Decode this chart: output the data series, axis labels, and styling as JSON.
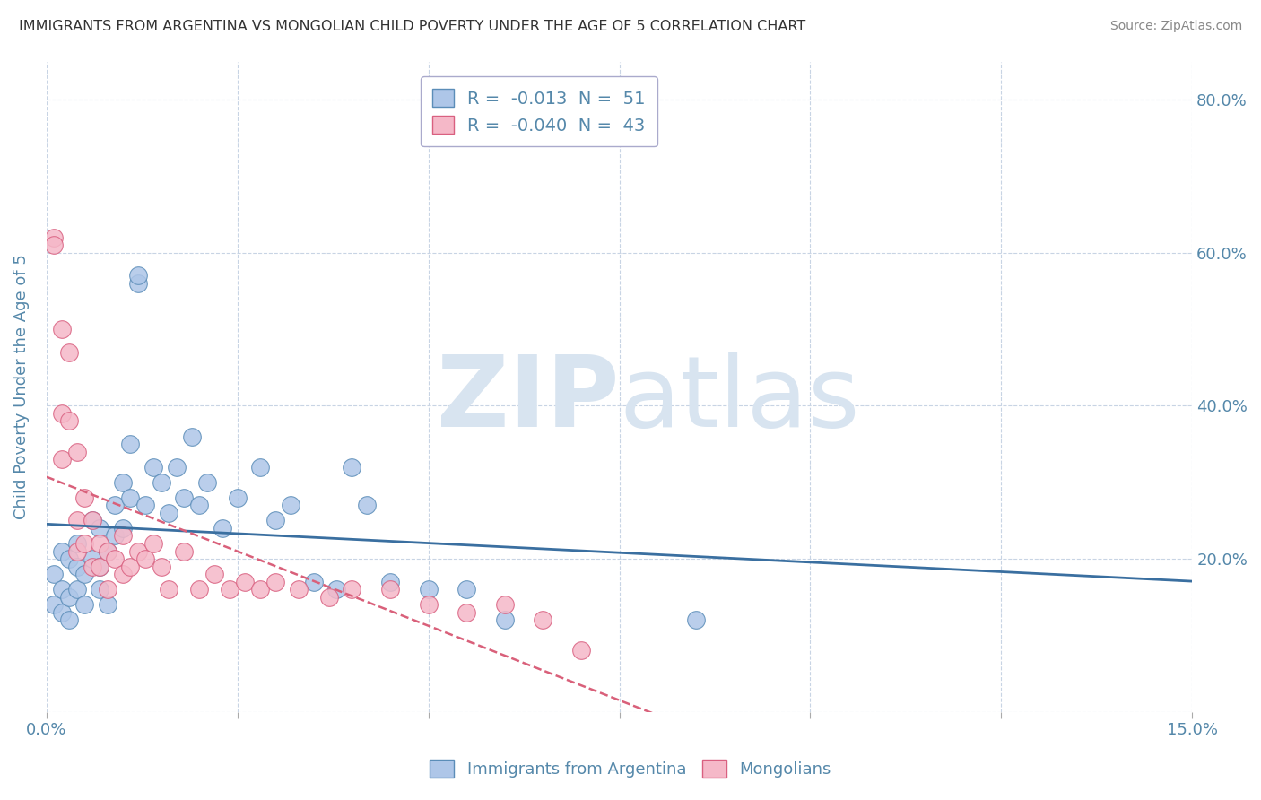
{
  "title": "IMMIGRANTS FROM ARGENTINA VS MONGOLIAN CHILD POVERTY UNDER THE AGE OF 5 CORRELATION CHART",
  "source": "Source: ZipAtlas.com",
  "ylabel": "Child Poverty Under the Age of 5",
  "xlim": [
    0.0,
    0.15
  ],
  "ylim": [
    0.0,
    0.85
  ],
  "right_yticks": [
    0.2,
    0.4,
    0.6,
    0.8
  ],
  "right_yticklabels": [
    "20.0%",
    "40.0%",
    "60.0%",
    "80.0%"
  ],
  "blue_R": "-0.013",
  "blue_N": "51",
  "pink_R": "-0.040",
  "pink_N": "43",
  "blue_color": "#aec6e8",
  "pink_color": "#f5b8c8",
  "blue_edge_color": "#5b8db8",
  "pink_edge_color": "#d96080",
  "blue_line_color": "#3a6fa0",
  "pink_line_color": "#d9607a",
  "watermark_color": "#d8e4f0",
  "legend_label_blue": "Immigrants from Argentina",
  "legend_label_pink": "Mongolians",
  "blue_scatter_x": [
    0.001,
    0.001,
    0.002,
    0.002,
    0.002,
    0.003,
    0.003,
    0.003,
    0.004,
    0.004,
    0.004,
    0.005,
    0.005,
    0.006,
    0.006,
    0.007,
    0.007,
    0.007,
    0.008,
    0.008,
    0.009,
    0.009,
    0.01,
    0.01,
    0.011,
    0.011,
    0.012,
    0.012,
    0.013,
    0.014,
    0.015,
    0.016,
    0.017,
    0.018,
    0.019,
    0.02,
    0.021,
    0.023,
    0.025,
    0.028,
    0.03,
    0.032,
    0.035,
    0.038,
    0.04,
    0.042,
    0.045,
    0.05,
    0.055,
    0.06,
    0.085
  ],
  "blue_scatter_y": [
    0.18,
    0.14,
    0.16,
    0.21,
    0.13,
    0.15,
    0.2,
    0.12,
    0.19,
    0.16,
    0.22,
    0.18,
    0.14,
    0.2,
    0.25,
    0.24,
    0.19,
    0.16,
    0.21,
    0.14,
    0.27,
    0.23,
    0.3,
    0.24,
    0.35,
    0.28,
    0.56,
    0.57,
    0.27,
    0.32,
    0.3,
    0.26,
    0.32,
    0.28,
    0.36,
    0.27,
    0.3,
    0.24,
    0.28,
    0.32,
    0.25,
    0.27,
    0.17,
    0.16,
    0.32,
    0.27,
    0.17,
    0.16,
    0.16,
    0.12,
    0.12
  ],
  "pink_scatter_x": [
    0.001,
    0.001,
    0.002,
    0.002,
    0.002,
    0.003,
    0.003,
    0.004,
    0.004,
    0.004,
    0.005,
    0.005,
    0.006,
    0.006,
    0.007,
    0.007,
    0.008,
    0.008,
    0.009,
    0.01,
    0.01,
    0.011,
    0.012,
    0.013,
    0.014,
    0.015,
    0.016,
    0.018,
    0.02,
    0.022,
    0.024,
    0.026,
    0.028,
    0.03,
    0.033,
    0.037,
    0.04,
    0.045,
    0.05,
    0.055,
    0.06,
    0.065,
    0.07
  ],
  "pink_scatter_y": [
    0.62,
    0.61,
    0.5,
    0.39,
    0.33,
    0.38,
    0.47,
    0.34,
    0.25,
    0.21,
    0.28,
    0.22,
    0.25,
    0.19,
    0.22,
    0.19,
    0.21,
    0.16,
    0.2,
    0.23,
    0.18,
    0.19,
    0.21,
    0.2,
    0.22,
    0.19,
    0.16,
    0.21,
    0.16,
    0.18,
    0.16,
    0.17,
    0.16,
    0.17,
    0.16,
    0.15,
    0.16,
    0.16,
    0.14,
    0.13,
    0.14,
    0.12,
    0.08
  ],
  "background_color": "#ffffff",
  "grid_color": "#c8d4e4",
  "title_color": "#333333",
  "axis_color": "#5588aa"
}
